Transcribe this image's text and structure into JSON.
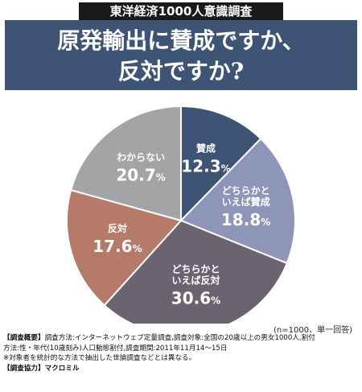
{
  "header": {
    "series_tag": "東洋経済1000人意識調査",
    "title": "原発輸出に賛成ですか、\n反対ですか?"
  },
  "chart_data": {
    "type": "pie",
    "title": "原発輸出に賛成ですか、反対ですか?",
    "unit": "%",
    "slices": [
      {
        "label": "賛成",
        "value": 12.3,
        "color": "#3d5474"
      },
      {
        "label": "どちらかと\nいえば賛成",
        "value": 18.8,
        "color": "#8d95b9"
      },
      {
        "label": "どちらかと\nいえば反対",
        "value": 30.6,
        "color": "#6b636f"
      },
      {
        "label": "反対",
        "value": 17.6,
        "color": "#b67a69"
      },
      {
        "label": "わからない",
        "value": 20.7,
        "color": "#a2a4a6"
      }
    ]
  },
  "note": "(n=1000、単一回答)",
  "footer": {
    "overview_label": "【調査概要】",
    "overview_text_1": "調査方法:インターネットウェブ定量調査,調査対象:全国の20歳以上の男女1000人,割付",
    "overview_text_2": "方法:性・年代(10歳刻み)人口動態割付,調査期間:2011年11月14〜15日",
    "overview_text_3": "※対象者を統計的な方法で抽出した世論調査などとは異なる。",
    "cooperation_label": "【調査協力】",
    "cooperation_text": "マクロミル"
  }
}
